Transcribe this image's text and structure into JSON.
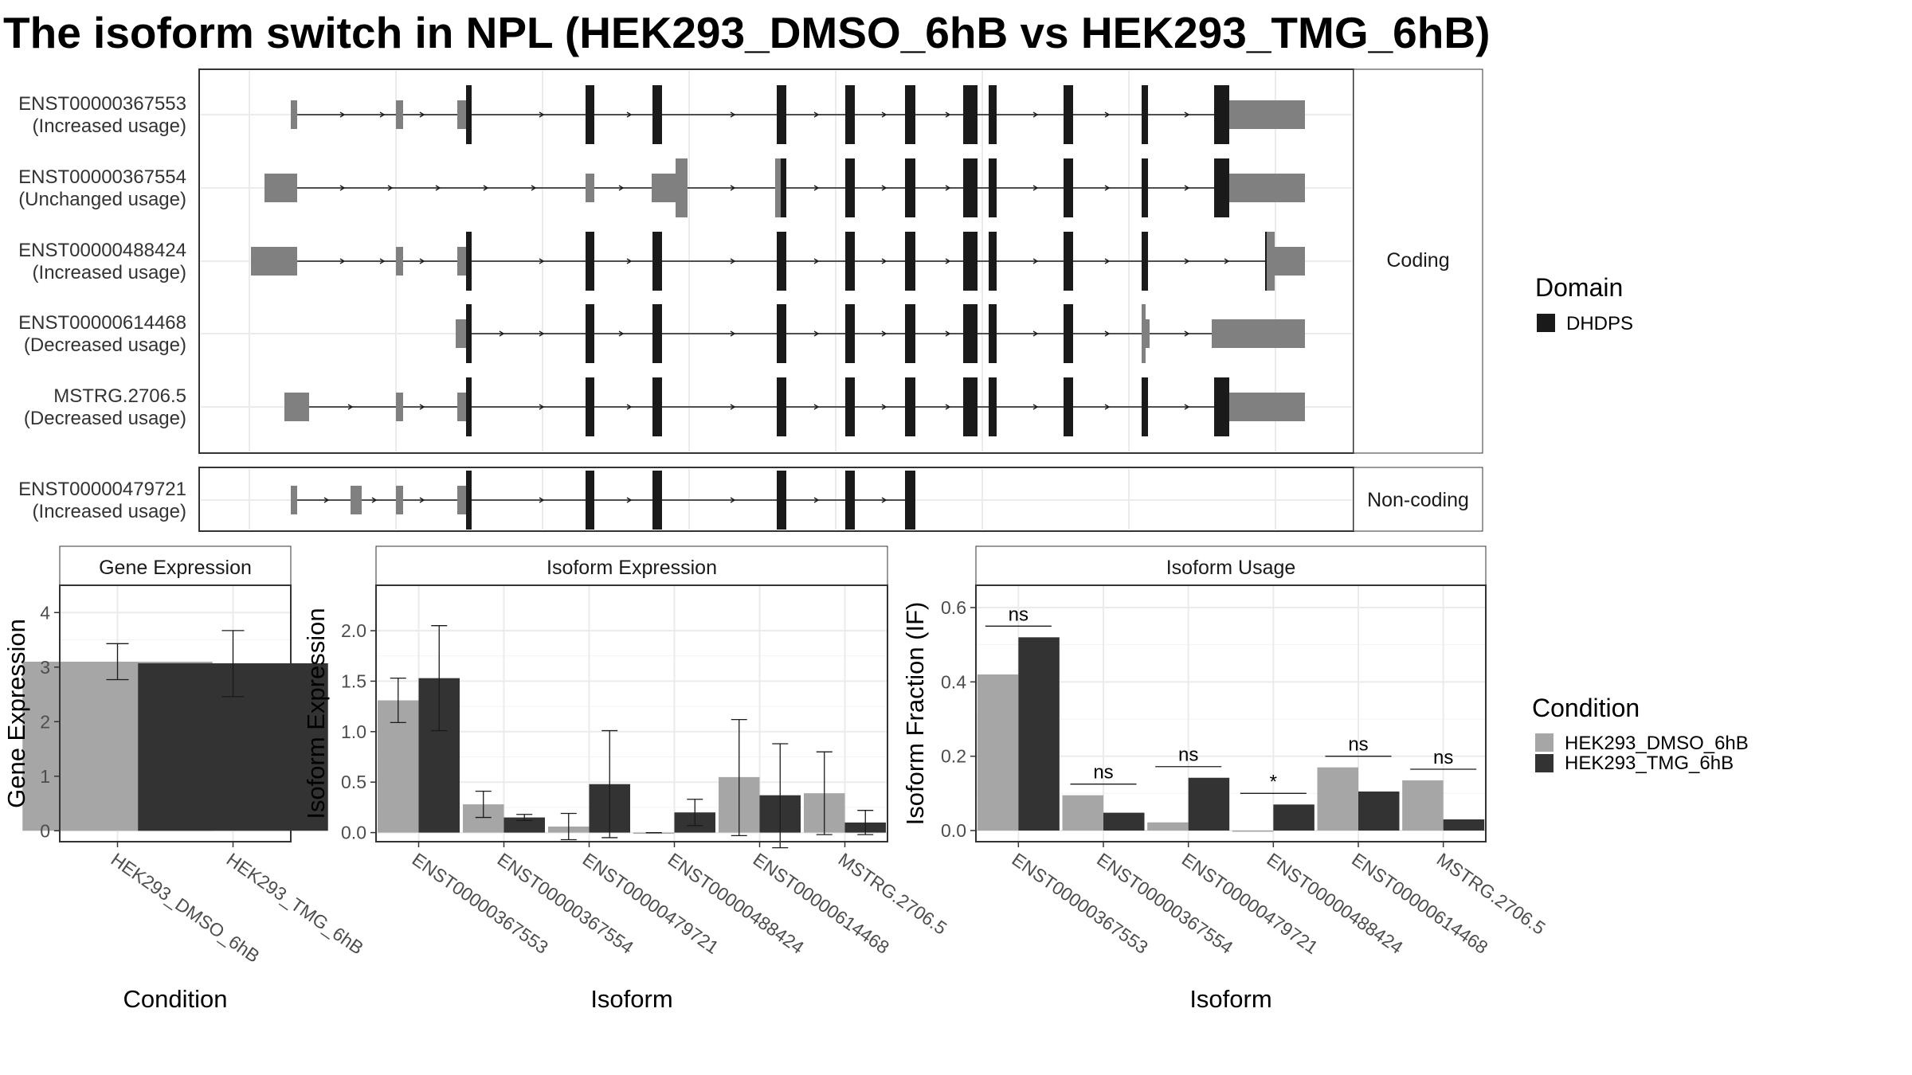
{
  "title": "The isoform switch in NPL (HEK293_DMSO_6hB vs HEK293_TMG_6hB)",
  "colors": {
    "dmso": "#a6a6a6",
    "tmg": "#333333",
    "domain": "#1a1a1a",
    "utr": "#808080",
    "grid": "#ebebeb",
    "panel_border": "#333333",
    "strip_fill": "#ffffff"
  },
  "structure": {
    "strip_coding": "Coding",
    "strip_noncoding": "Non-coding",
    "domain_legend_title": "Domain",
    "domain_legend_item": "DHDPS",
    "coding": [
      {
        "id": "ENST00000367553",
        "usage": "(Increased usage)"
      },
      {
        "id": "ENST00000367554",
        "usage": "(Unchanged usage)"
      },
      {
        "id": "ENST00000488424",
        "usage": "(Increased usage)"
      },
      {
        "id": "ENST00000614468",
        "usage": "(Decreased usage)"
      },
      {
        "id": "MSTRG.2706.5",
        "usage": "(Decreased usage)"
      }
    ],
    "noncoding": [
      {
        "id": "ENST00000479721",
        "usage": "(Increased usage)"
      }
    ]
  },
  "legend": {
    "title": "Condition",
    "items": [
      "HEK293_DMSO_6hB",
      "HEK293_TMG_6hB"
    ]
  },
  "chart_data": [
    {
      "type": "bar",
      "title": "Gene Expression",
      "xlabel": "Condition",
      "ylabel": "Gene Expression",
      "categories": [
        "HEK293_DMSO_6hB",
        "HEK293_TMG_6hB"
      ],
      "values": [
        3.1,
        3.07
      ],
      "error_low": [
        2.77,
        2.46
      ],
      "error_high": [
        3.43,
        3.67
      ],
      "ylim": [
        -0.2,
        4.5
      ],
      "yticks": [
        0,
        1,
        2,
        3,
        4
      ]
    },
    {
      "type": "bar",
      "title": "Isoform Expression",
      "xlabel": "Isoform",
      "ylabel": "Isoform Expression",
      "categories": [
        "ENST00000367553",
        "ENST00000367554",
        "ENST00000479721",
        "ENST00000488424",
        "ENST00000614468",
        "MSTRG.2706.5"
      ],
      "series": [
        {
          "name": "HEK293_DMSO_6hB",
          "values": [
            1.31,
            0.28,
            0.06,
            0.0,
            0.55,
            0.39
          ],
          "error_low": [
            1.09,
            0.15,
            -0.07,
            0.0,
            -0.03,
            -0.02
          ],
          "error_high": [
            1.53,
            0.41,
            0.19,
            0.0,
            1.12,
            0.8
          ]
        },
        {
          "name": "HEK293_TMG_6hB",
          "values": [
            1.53,
            0.15,
            0.48,
            0.2,
            0.37,
            0.1
          ],
          "error_low": [
            1.01,
            0.12,
            -0.05,
            0.07,
            -0.15,
            -0.02
          ],
          "error_high": [
            2.05,
            0.18,
            1.01,
            0.33,
            0.88,
            0.22
          ]
        }
      ],
      "ylim": [
        -0.09,
        2.45
      ],
      "yticks": [
        0.0,
        0.5,
        1.0,
        1.5,
        2.0
      ]
    },
    {
      "type": "bar",
      "title": "Isoform Usage",
      "xlabel": "Isoform",
      "ylabel": "Isoform Fraction (IF)",
      "categories": [
        "ENST00000367553",
        "ENST00000367554",
        "ENST00000479721",
        "ENST00000488424",
        "ENST00000614468",
        "MSTRG.2706.5"
      ],
      "series": [
        {
          "name": "HEK293_DMSO_6hB",
          "values": [
            0.42,
            0.095,
            0.022,
            0.0,
            0.17,
            0.135
          ]
        },
        {
          "name": "HEK293_TMG_6hB",
          "values": [
            0.52,
            0.048,
            0.142,
            0.07,
            0.105,
            0.03
          ]
        }
      ],
      "significance": [
        "ns",
        "ns",
        "ns",
        "*",
        "ns",
        "ns"
      ],
      "ylim": [
        -0.03,
        0.66
      ],
      "yticks": [
        0.0,
        0.2,
        0.4,
        0.6
      ]
    }
  ]
}
